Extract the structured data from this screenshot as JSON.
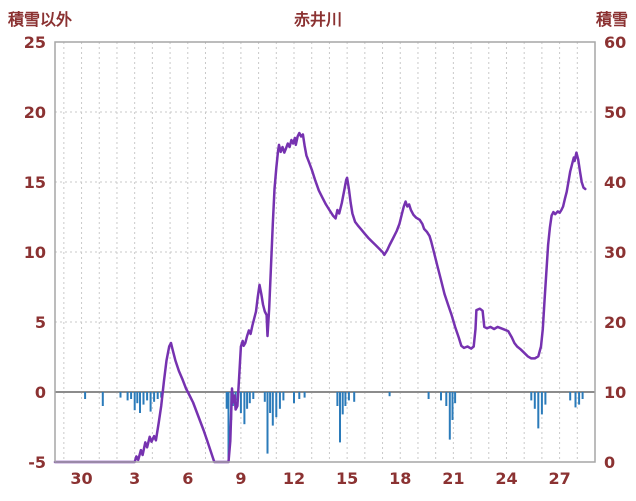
{
  "header": {
    "left_axis_title": "積雪以外",
    "title": "赤井川",
    "right_axis_title": "積雪"
  },
  "colors": {
    "text": "#8b3232",
    "line": "#7632b0",
    "bar": "#2b7bba",
    "grid": "#c9c9c9",
    "zero_line": "#8c8c8c",
    "frame": "#a6a6a6"
  },
  "chart_data": {
    "type": "line",
    "title": "赤井川",
    "left_axis": {
      "label": "積雪以外",
      "min": -5,
      "max": 25,
      "ticks": [
        25,
        20,
        15,
        10,
        5,
        0,
        -5
      ]
    },
    "right_axis": {
      "label": "積雪",
      "min": 0,
      "max": 60,
      "ticks": [
        60,
        50,
        40,
        30,
        20,
        10,
        0
      ]
    },
    "x_axis": {
      "min": -1.5,
      "max": 29,
      "tick_positions": [
        0,
        3,
        6,
        9,
        12,
        15,
        18,
        21,
        24,
        27
      ],
      "tick_labels": [
        "30",
        "3",
        "6",
        "9",
        "12",
        "15",
        "18",
        "21",
        "24",
        "27"
      ],
      "grid_day_start": -1,
      "grid_day_end": 28
    },
    "grid": true,
    "legend": "none",
    "series": [
      {
        "name": "blue-bars",
        "type": "bar",
        "axis": "left",
        "color": "#2b7bba",
        "points": [
          [
            0.2,
            -0.5
          ],
          [
            1.2,
            -1.0
          ],
          [
            2.2,
            -0.4
          ],
          [
            2.6,
            -0.6
          ],
          [
            2.8,
            -0.5
          ],
          [
            3.0,
            -1.3
          ],
          [
            3.15,
            -0.8
          ],
          [
            3.3,
            -1.5
          ],
          [
            3.5,
            -0.9
          ],
          [
            3.7,
            -0.6
          ],
          [
            3.9,
            -1.4
          ],
          [
            4.1,
            -0.7
          ],
          [
            4.3,
            -0.5
          ],
          [
            4.5,
            -0.4
          ],
          [
            8.2,
            -1.2
          ],
          [
            8.3,
            -4.8
          ],
          [
            8.45,
            -2.0
          ],
          [
            8.55,
            -1.0
          ],
          [
            8.7,
            -0.6
          ],
          [
            9.0,
            -1.5
          ],
          [
            9.2,
            -2.3
          ],
          [
            9.35,
            -1.2
          ],
          [
            9.5,
            -0.8
          ],
          [
            9.7,
            -0.5
          ],
          [
            10.35,
            -0.7
          ],
          [
            10.5,
            -4.4
          ],
          [
            10.65,
            -1.5
          ],
          [
            10.8,
            -2.4
          ],
          [
            11.0,
            -1.8
          ],
          [
            11.2,
            -1.2
          ],
          [
            11.4,
            -0.6
          ],
          [
            12.0,
            -0.8
          ],
          [
            12.3,
            -0.5
          ],
          [
            12.6,
            -0.4
          ],
          [
            14.45,
            -1.0
          ],
          [
            14.6,
            -3.6
          ],
          [
            14.75,
            -1.6
          ],
          [
            14.9,
            -1.0
          ],
          [
            15.1,
            -0.6
          ],
          [
            15.4,
            -0.7
          ],
          [
            17.4,
            -0.3
          ],
          [
            19.6,
            -0.5
          ],
          [
            20.3,
            -0.6
          ],
          [
            20.6,
            -1.0
          ],
          [
            20.8,
            -3.4
          ],
          [
            20.95,
            -2.0
          ],
          [
            21.1,
            -0.8
          ],
          [
            25.4,
            -0.6
          ],
          [
            25.6,
            -1.2
          ],
          [
            25.8,
            -2.6
          ],
          [
            26.0,
            -1.6
          ],
          [
            26.2,
            -0.9
          ],
          [
            27.6,
            -0.6
          ],
          [
            27.9,
            -1.1
          ],
          [
            28.1,
            -0.9
          ],
          [
            28.3,
            -0.5
          ]
        ]
      },
      {
        "name": "purple-line",
        "type": "line",
        "axis": "right",
        "color": "#7632b0",
        "points": [
          [
            -1.5,
            0
          ],
          [
            3.0,
            0
          ],
          [
            3.1,
            0.8
          ],
          [
            3.2,
            0.3
          ],
          [
            3.35,
            1.7
          ],
          [
            3.45,
            1.0
          ],
          [
            3.6,
            2.8
          ],
          [
            3.7,
            2.1
          ],
          [
            3.85,
            3.6
          ],
          [
            3.95,
            2.9
          ],
          [
            4.1,
            3.7
          ],
          [
            4.2,
            3.1
          ],
          [
            4.35,
            5.5
          ],
          [
            4.5,
            8
          ],
          [
            4.65,
            11.5
          ],
          [
            4.8,
            14.5
          ],
          [
            4.95,
            16.5
          ],
          [
            5.05,
            17
          ],
          [
            5.15,
            16
          ],
          [
            5.3,
            14.5
          ],
          [
            5.5,
            13
          ],
          [
            5.7,
            11.8
          ],
          [
            5.9,
            10.5
          ],
          [
            6.1,
            9.5
          ],
          [
            6.3,
            8.5
          ],
          [
            6.6,
            6.5
          ],
          [
            6.9,
            4.5
          ],
          [
            7.1,
            3
          ],
          [
            7.3,
            1.5
          ],
          [
            7.5,
            0
          ],
          [
            8.3,
            0
          ],
          [
            8.4,
            3
          ],
          [
            8.5,
            10.5
          ],
          [
            8.55,
            8.5
          ],
          [
            8.65,
            9.5
          ],
          [
            8.7,
            7.5
          ],
          [
            8.8,
            8
          ],
          [
            8.9,
            12
          ],
          [
            9.0,
            16.5
          ],
          [
            9.1,
            17.3
          ],
          [
            9.15,
            16.6
          ],
          [
            9.25,
            17
          ],
          [
            9.35,
            18
          ],
          [
            9.45,
            18.8
          ],
          [
            9.55,
            18.3
          ],
          [
            9.65,
            19.5
          ],
          [
            9.75,
            20.5
          ],
          [
            9.85,
            21.5
          ],
          [
            9.95,
            23.5
          ],
          [
            10.05,
            25.3
          ],
          [
            10.15,
            24
          ],
          [
            10.25,
            22.5
          ],
          [
            10.35,
            21.5
          ],
          [
            10.45,
            21
          ],
          [
            10.5,
            18
          ],
          [
            10.6,
            22
          ],
          [
            10.7,
            28
          ],
          [
            10.8,
            34
          ],
          [
            10.9,
            39
          ],
          [
            11.0,
            42
          ],
          [
            11.1,
            44.5
          ],
          [
            11.15,
            45.3
          ],
          [
            11.25,
            44.3
          ],
          [
            11.35,
            45
          ],
          [
            11.45,
            44.2
          ],
          [
            11.55,
            44.8
          ],
          [
            11.65,
            45.5
          ],
          [
            11.75,
            45
          ],
          [
            11.85,
            46
          ],
          [
            11.95,
            45.5
          ],
          [
            12.05,
            46.3
          ],
          [
            12.1,
            45.3
          ],
          [
            12.2,
            46.5
          ],
          [
            12.3,
            47
          ],
          [
            12.4,
            46.5
          ],
          [
            12.5,
            46.8
          ],
          [
            12.6,
            45.2
          ],
          [
            12.7,
            43.8
          ],
          [
            12.85,
            42.8
          ],
          [
            13.0,
            41.8
          ],
          [
            13.2,
            40.2
          ],
          [
            13.4,
            38.8
          ],
          [
            13.6,
            37.8
          ],
          [
            13.8,
            36.8
          ],
          [
            14.0,
            36
          ],
          [
            14.2,
            35.2
          ],
          [
            14.35,
            34.8
          ],
          [
            14.45,
            36
          ],
          [
            14.55,
            35.5
          ],
          [
            14.7,
            37
          ],
          [
            14.85,
            39
          ],
          [
            14.95,
            40.3
          ],
          [
            15.0,
            40.6
          ],
          [
            15.1,
            39
          ],
          [
            15.2,
            37
          ],
          [
            15.3,
            35.5
          ],
          [
            15.45,
            34.3
          ],
          [
            15.6,
            33.8
          ],
          [
            15.8,
            33.2
          ],
          [
            16.0,
            32.6
          ],
          [
            16.2,
            32
          ],
          [
            16.4,
            31.5
          ],
          [
            16.6,
            31
          ],
          [
            16.8,
            30.5
          ],
          [
            17.0,
            30
          ],
          [
            17.1,
            29.6
          ],
          [
            17.25,
            30.2
          ],
          [
            17.4,
            31
          ],
          [
            17.6,
            32
          ],
          [
            17.8,
            33
          ],
          [
            17.95,
            34
          ],
          [
            18.1,
            35.5
          ],
          [
            18.2,
            36.5
          ],
          [
            18.3,
            37.2
          ],
          [
            18.4,
            36.5
          ],
          [
            18.5,
            36.8
          ],
          [
            18.6,
            36
          ],
          [
            18.75,
            35.3
          ],
          [
            18.9,
            34.9
          ],
          [
            19.1,
            34.6
          ],
          [
            19.25,
            34
          ],
          [
            19.35,
            33.3
          ],
          [
            19.5,
            32.9
          ],
          [
            19.65,
            32.3
          ],
          [
            19.75,
            31.5
          ],
          [
            19.9,
            30
          ],
          [
            20.1,
            28
          ],
          [
            20.3,
            26
          ],
          [
            20.5,
            24
          ],
          [
            20.7,
            22.5
          ],
          [
            20.9,
            21
          ],
          [
            21.1,
            19.3
          ],
          [
            21.3,
            17.8
          ],
          [
            21.45,
            16.6
          ],
          [
            21.6,
            16.3
          ],
          [
            21.8,
            16.5
          ],
          [
            22.0,
            16.2
          ],
          [
            22.15,
            16.5
          ],
          [
            22.25,
            19
          ],
          [
            22.3,
            21.7
          ],
          [
            22.5,
            21.9
          ],
          [
            22.65,
            21.6
          ],
          [
            22.75,
            19.3
          ],
          [
            22.9,
            19.1
          ],
          [
            23.1,
            19.3
          ],
          [
            23.3,
            19
          ],
          [
            23.5,
            19.3
          ],
          [
            23.7,
            19.1
          ],
          [
            23.9,
            18.9
          ],
          [
            24.1,
            18.7
          ],
          [
            24.3,
            17.8
          ],
          [
            24.45,
            17
          ],
          [
            24.6,
            16.5
          ],
          [
            24.8,
            16.1
          ],
          [
            25.0,
            15.6
          ],
          [
            25.2,
            15.1
          ],
          [
            25.4,
            14.8
          ],
          [
            25.6,
            14.8
          ],
          [
            25.8,
            15.1
          ],
          [
            25.95,
            16.5
          ],
          [
            26.05,
            19
          ],
          [
            26.15,
            23
          ],
          [
            26.25,
            27
          ],
          [
            26.35,
            31
          ],
          [
            26.45,
            33.5
          ],
          [
            26.55,
            35.2
          ],
          [
            26.65,
            35.7
          ],
          [
            26.75,
            35.4
          ],
          [
            26.9,
            35.8
          ],
          [
            27.0,
            35.6
          ],
          [
            27.1,
            36
          ],
          [
            27.2,
            36.5
          ],
          [
            27.3,
            37.6
          ],
          [
            27.4,
            38.6
          ],
          [
            27.5,
            40
          ],
          [
            27.6,
            41.5
          ],
          [
            27.7,
            42.5
          ],
          [
            27.8,
            43.5
          ],
          [
            27.85,
            43
          ],
          [
            27.95,
            44.2
          ],
          [
            28.05,
            43.2
          ],
          [
            28.15,
            41.5
          ],
          [
            28.25,
            40
          ],
          [
            28.35,
            39.2
          ],
          [
            28.45,
            39
          ]
        ]
      }
    ]
  }
}
